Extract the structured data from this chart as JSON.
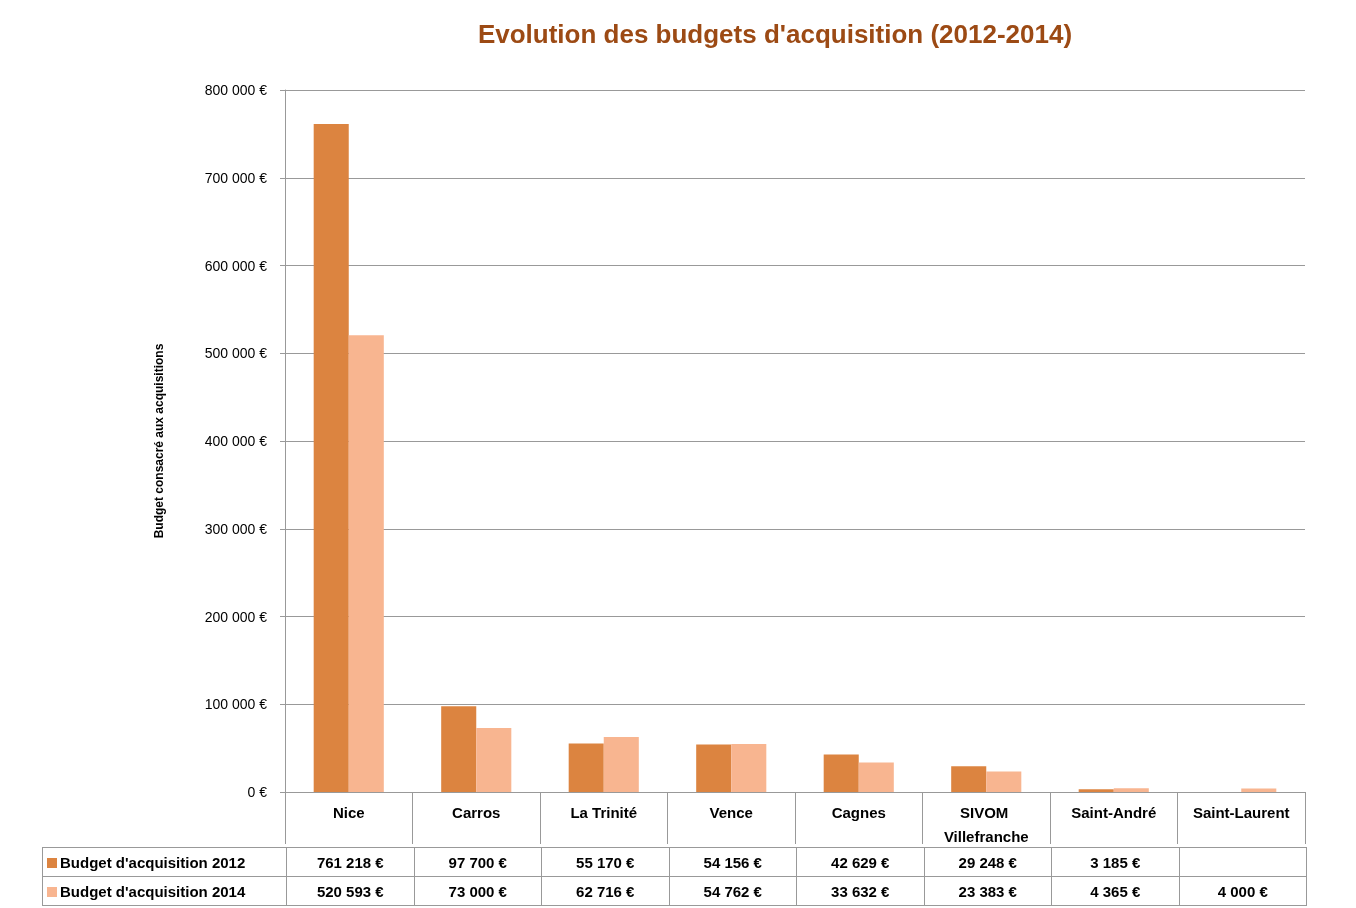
{
  "chart_data": {
    "type": "bar",
    "title": "Evolution des budgets d'acquisition (2012-2014)",
    "ylabel": "Budget consacré aux acquisitions",
    "categories": [
      "Nice",
      "Carros",
      "La Trinité",
      "Vence",
      "Cagnes",
      "SIVOM Villefranche",
      "Saint-André",
      "Saint-Laurent"
    ],
    "series": [
      {
        "name": "Budget d'acquisition 2012",
        "color": "#dc8440",
        "values": [
          761218,
          97700,
          55170,
          54156,
          42629,
          29248,
          3185,
          null
        ],
        "value_labels": [
          "761 218 €",
          "97 700 €",
          "55 170 €",
          "54 156 €",
          "42 629 €",
          "29 248 €",
          "3 185 €",
          null
        ]
      },
      {
        "name": "Budget d'acquisition 2014",
        "color": "#f8b590",
        "values": [
          520593,
          73000,
          62716,
          54762,
          33632,
          23383,
          4365,
          4000
        ],
        "value_labels": [
          "520 593 €",
          "73 000 €",
          "62 716 €",
          "54 762 €",
          "33 632 €",
          "23 383 €",
          "4 365 €",
          "4 000 €"
        ]
      }
    ],
    "ylim": [
      0,
      800000
    ],
    "yticks": [
      {
        "value": 0,
        "label": "0 €"
      },
      {
        "value": 100000,
        "label": "100 000 €"
      },
      {
        "value": 200000,
        "label": "200 000 €"
      },
      {
        "value": 300000,
        "label": "300 000 €"
      },
      {
        "value": 400000,
        "label": "400 000 €"
      },
      {
        "value": 500000,
        "label": "500 000 €"
      },
      {
        "value": 600000,
        "label": "600 000 €"
      },
      {
        "value": 700000,
        "label": "700 000 €"
      },
      {
        "value": 800000,
        "label": "800 000 €"
      }
    ],
    "grid": "y",
    "legend": "bottom",
    "data_labels": true
  }
}
